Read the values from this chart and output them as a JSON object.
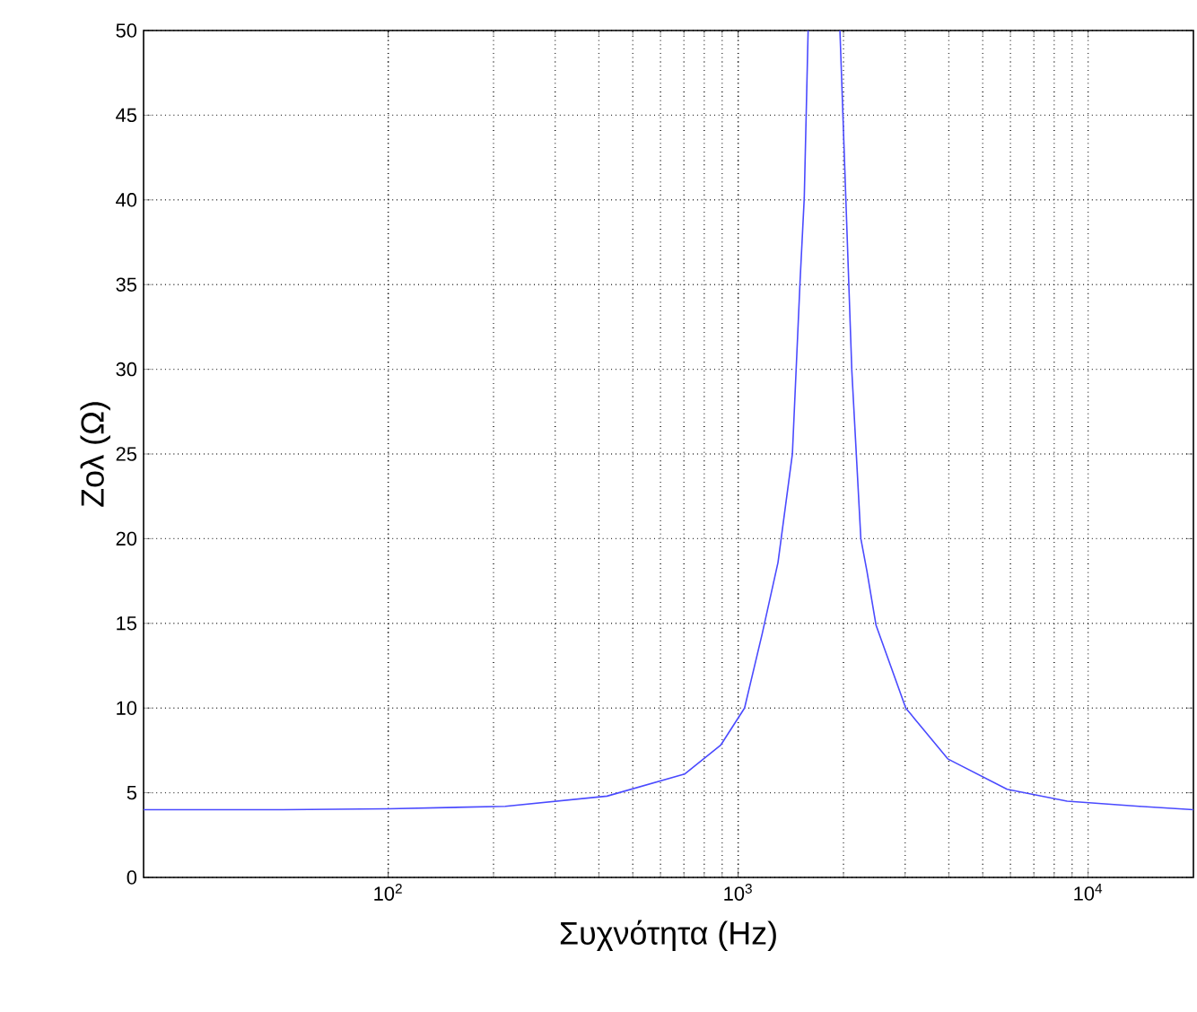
{
  "chart_data": {
    "type": "line",
    "xlabel": "Συχνότητα (Hz)",
    "ylabel": "Zολ (Ω)",
    "log": "x",
    "grid": true,
    "line_style": "solid",
    "marker": "none",
    "xlim": [
      20,
      20000
    ],
    "ylim": [
      0,
      50
    ],
    "xticks": [
      {
        "value": 100,
        "label": "10$^{2}$"
      },
      {
        "value": 1000,
        "label": "10$^{3}$"
      },
      {
        "value": 10000,
        "label": "10$^{4}$"
      }
    ],
    "yticks": [
      0,
      5,
      10,
      15,
      20,
      25,
      30,
      35,
      40,
      45,
      50
    ],
    "x": [
      20,
      50,
      100,
      216,
      422,
      703,
      891,
      1043,
      1172,
      1300,
      1429,
      1503,
      1545,
      1585,
      1750,
      1954,
      2031,
      2113,
      2242,
      2333,
      2477,
      3013,
      3972,
      5870,
      8710,
      14000,
      20000
    ],
    "series": [
      {
        "color": "#4a4aff",
        "values": [
          4.0,
          4.0,
          4.05,
          4.2,
          4.8,
          6.1,
          7.8,
          10,
          14.4,
          18.6,
          25,
          35.2,
          40.1,
          50,
          null,
          50,
          40.1,
          29.9,
          20,
          18.1,
          14.9,
          10,
          7,
          5.2,
          4.5,
          4.2,
          4.0
        ]
      }
    ]
  }
}
